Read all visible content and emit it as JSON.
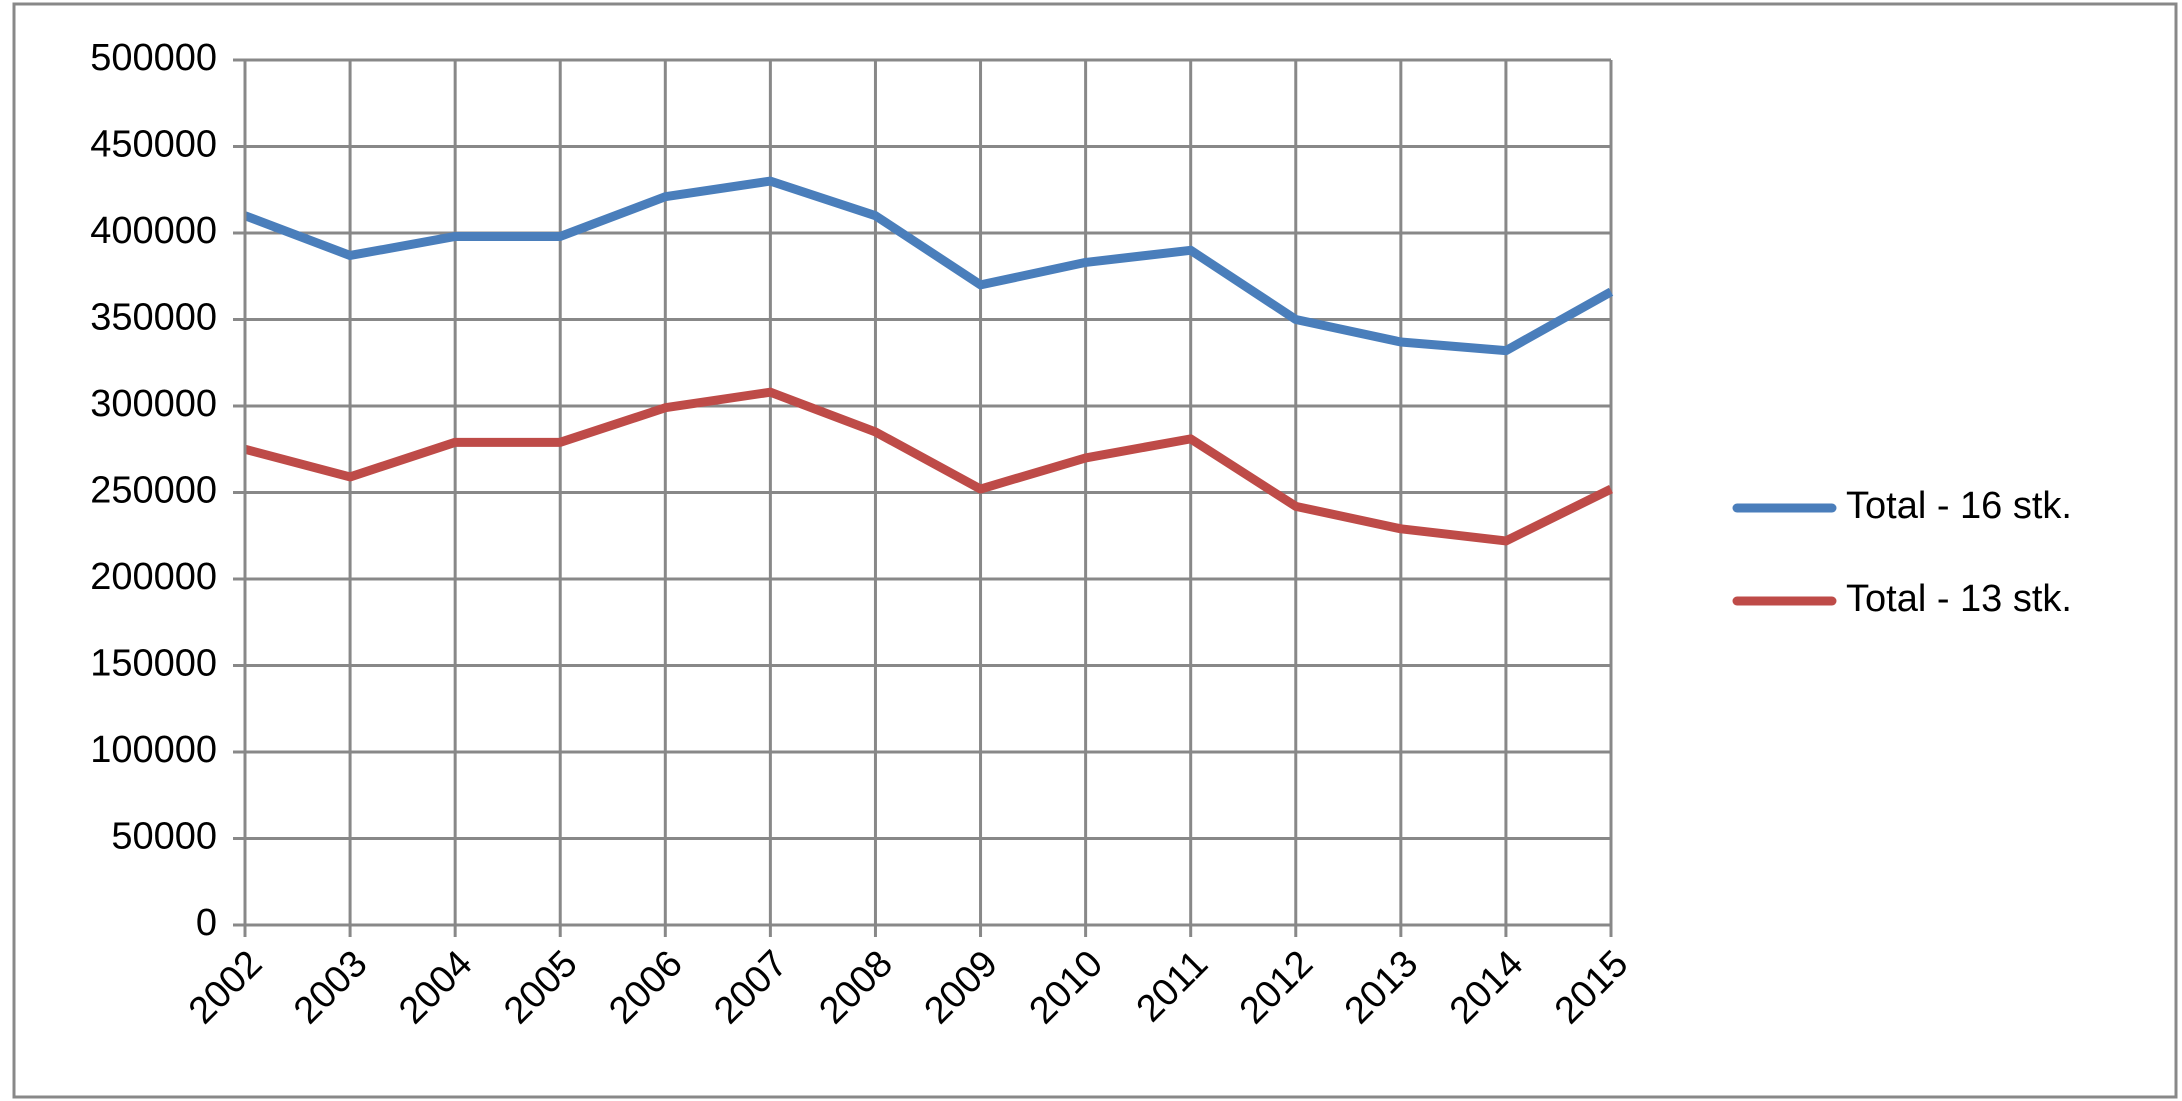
{
  "chart_data": {
    "type": "line",
    "categories": [
      "2002",
      "2003",
      "2004",
      "2005",
      "2006",
      "2007",
      "2008",
      "2009",
      "2010",
      "2011",
      "2012",
      "2013",
      "2014",
      "2015"
    ],
    "series": [
      {
        "name": "Total - 16 stk.",
        "color": "#4a7ebb",
        "values": [
          410000,
          387000,
          398000,
          398000,
          421000,
          430000,
          410000,
          370000,
          383000,
          390000,
          350000,
          337000,
          332000,
          366000
        ]
      },
      {
        "name": "Total - 13 stk.",
        "color": "#be4b48",
        "values": [
          275000,
          259000,
          279000,
          279000,
          299000,
          308000,
          285000,
          252000,
          270000,
          281000,
          242000,
          229000,
          222000,
          252000
        ]
      }
    ],
    "ylim": [
      0,
      500000
    ],
    "yticks": [
      0,
      50000,
      100000,
      150000,
      200000,
      250000,
      300000,
      350000,
      400000,
      450000,
      500000
    ],
    "grid": true,
    "legend": "right"
  }
}
